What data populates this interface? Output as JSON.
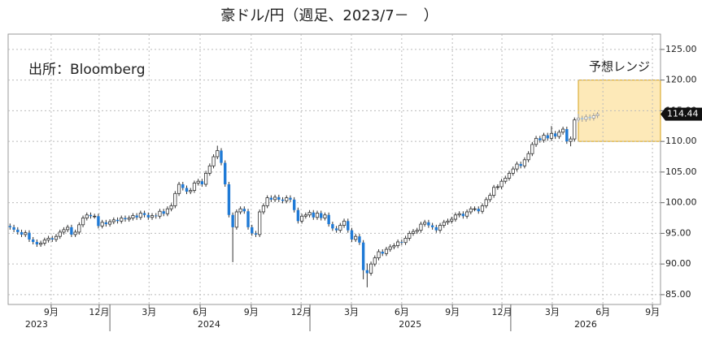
{
  "chart_data": {
    "type": "candlestick",
    "title": "豪ドル/円（週足、2023/7－　）",
    "source": "出所：Bloomberg",
    "up_color": "#ffffff",
    "down_color": "#1f7ad6",
    "edge_color": "#333333",
    "grid": true,
    "ylim": [
      83.4,
      127.5
    ],
    "yticks": [
      {
        "value": 85,
        "label": "85.00"
      },
      {
        "value": 90,
        "label": "90.00"
      },
      {
        "value": 95,
        "label": "95.00"
      },
      {
        "value": 100,
        "label": "100.00"
      },
      {
        "value": 105,
        "label": "105.00"
      },
      {
        "value": 110,
        "label": "110.00"
      },
      {
        "value": 115,
        "label": "115.00"
      },
      {
        "value": 120,
        "label": "120.00"
      },
      {
        "value": 125,
        "label": "125.00"
      }
    ],
    "xlim": [
      -0.5,
      169.4
    ],
    "xticks": [
      {
        "value": 10.7,
        "label": "9月"
      },
      {
        "value": 23.2,
        "label": "12月"
      },
      {
        "value": 36.2,
        "label": "3月"
      },
      {
        "value": 49.5,
        "label": "6月"
      },
      {
        "value": 62.8,
        "label": "9月"
      },
      {
        "value": 75.8,
        "label": "12月"
      },
      {
        "value": 88.9,
        "label": "3月"
      },
      {
        "value": 102.0,
        "label": "6月"
      },
      {
        "value": 115.2,
        "label": "9月"
      },
      {
        "value": 128.1,
        "label": "12月"
      },
      {
        "value": 141.2,
        "label": "3月"
      },
      {
        "value": 154.4,
        "label": "6月"
      },
      {
        "value": 167.3,
        "label": "9月"
      }
    ],
    "years": [
      {
        "value": 6.9,
        "label": "2023"
      },
      {
        "value": 51.8,
        "label": "2024"
      },
      {
        "value": 104.2,
        "label": "2025"
      },
      {
        "value": 149.9,
        "label": "2026"
      }
    ],
    "year_ticks": [
      26.0,
      78.1,
      130.4
    ],
    "range_box": {
      "label": "予想レンジ",
      "xlim": [
        148,
        169.4
      ],
      "ylim": [
        110,
        120
      ],
      "color": "#fde9b8",
      "edge": "#d4a017"
    },
    "candles": [
      [
        96.2,
        96.6,
        95.6,
        96.0
      ],
      [
        96.0,
        96.4,
        95.2,
        95.6
      ],
      [
        95.6,
        96.0,
        94.8,
        95.2
      ],
      [
        95.2,
        95.6,
        94.4,
        94.8
      ],
      [
        94.8,
        95.5,
        94.4,
        95.1
      ],
      [
        95.1,
        95.5,
        93.6,
        94.0
      ],
      [
        94.0,
        94.4,
        93.2,
        93.6
      ],
      [
        93.6,
        94.0,
        92.8,
        93.2
      ],
      [
        93.2,
        93.8,
        92.8,
        93.4
      ],
      [
        93.4,
        94.3,
        93.0,
        93.9
      ],
      [
        93.9,
        94.6,
        93.5,
        94.2
      ],
      [
        94.2,
        94.6,
        93.6,
        94.0
      ],
      [
        94.0,
        94.9,
        93.6,
        94.5
      ],
      [
        94.5,
        95.6,
        94.1,
        95.2
      ],
      [
        95.2,
        96.0,
        94.8,
        95.6
      ],
      [
        95.6,
        96.4,
        95.2,
        96.0
      ],
      [
        96.0,
        96.4,
        94.4,
        94.8
      ],
      [
        94.8,
        95.6,
        94.4,
        95.2
      ],
      [
        95.2,
        96.8,
        94.8,
        96.4
      ],
      [
        96.4,
        97.9,
        96.0,
        97.5
      ],
      [
        97.5,
        98.4,
        97.1,
        98.0
      ],
      [
        98.0,
        98.4,
        97.4,
        97.8
      ],
      [
        97.8,
        98.2,
        97.4,
        97.8
      ],
      [
        97.8,
        98.2,
        95.8,
        96.2
      ],
      [
        96.2,
        97.2,
        95.8,
        96.8
      ],
      [
        96.8,
        97.2,
        96.1,
        96.5
      ],
      [
        96.5,
        97.3,
        96.1,
        96.9
      ],
      [
        96.9,
        97.6,
        96.5,
        97.2
      ],
      [
        97.2,
        97.6,
        96.6,
        97.0
      ],
      [
        97.0,
        97.9,
        96.6,
        97.5
      ],
      [
        97.5,
        97.9,
        96.9,
        97.3
      ],
      [
        97.3,
        97.9,
        96.9,
        97.5
      ],
      [
        97.5,
        98.3,
        97.1,
        97.9
      ],
      [
        97.9,
        98.3,
        97.2,
        97.6
      ],
      [
        97.6,
        98.7,
        97.2,
        98.3
      ],
      [
        98.3,
        98.7,
        97.6,
        98.0
      ],
      [
        98.0,
        98.4,
        97.2,
        97.6
      ],
      [
        97.6,
        98.3,
        97.2,
        97.9
      ],
      [
        97.9,
        98.3,
        97.4,
        97.8
      ],
      [
        97.8,
        99.0,
        97.4,
        98.6
      ],
      [
        98.6,
        99.0,
        97.8,
        98.2
      ],
      [
        98.2,
        99.4,
        97.8,
        99.0
      ],
      [
        99.0,
        99.9,
        98.6,
        99.5
      ],
      [
        99.5,
        101.9,
        99.1,
        101.5
      ],
      [
        101.5,
        103.4,
        101.1,
        103.0
      ],
      [
        103.0,
        103.4,
        102.0,
        102.4
      ],
      [
        102.4,
        102.8,
        101.4,
        101.8
      ],
      [
        101.8,
        102.4,
        101.4,
        102.0
      ],
      [
        102.0,
        103.6,
        101.6,
        103.2
      ],
      [
        103.2,
        103.9,
        102.8,
        103.5
      ],
      [
        103.5,
        103.9,
        102.6,
        103.0
      ],
      [
        103.0,
        105.2,
        102.6,
        104.8
      ],
      [
        104.8,
        106.4,
        104.4,
        106.0
      ],
      [
        106.0,
        107.9,
        105.6,
        107.5
      ],
      [
        107.5,
        109.3,
        107.1,
        108.5
      ],
      [
        108.5,
        108.9,
        106.1,
        106.5
      ],
      [
        106.5,
        106.9,
        102.6,
        103.0
      ],
      [
        103.0,
        103.4,
        97.6,
        98.0
      ],
      [
        98.0,
        98.4,
        90.3,
        96.0
      ],
      [
        96.0,
        98.9,
        95.6,
        98.5
      ],
      [
        98.5,
        99.4,
        98.1,
        99.0
      ],
      [
        99.0,
        99.4,
        98.2,
        98.6
      ],
      [
        98.6,
        99.0,
        95.6,
        96.0
      ],
      [
        96.0,
        96.4,
        94.6,
        95.0
      ],
      [
        95.0,
        95.4,
        94.4,
        94.8
      ],
      [
        94.8,
        98.9,
        94.4,
        98.5
      ],
      [
        98.5,
        99.9,
        98.1,
        99.5
      ],
      [
        99.5,
        101.2,
        99.1,
        100.8
      ],
      [
        100.8,
        101.2,
        100.1,
        100.5
      ],
      [
        100.5,
        101.3,
        100.1,
        100.9
      ],
      [
        100.9,
        101.3,
        100.1,
        100.5
      ],
      [
        100.5,
        100.9,
        99.9,
        100.3
      ],
      [
        100.3,
        101.2,
        99.9,
        100.8
      ],
      [
        100.8,
        101.2,
        100.1,
        100.5
      ],
      [
        100.5,
        100.9,
        98.4,
        98.8
      ],
      [
        98.8,
        99.2,
        96.6,
        97.0
      ],
      [
        97.0,
        98.2,
        96.6,
        97.8
      ],
      [
        97.8,
        98.4,
        97.4,
        98.0
      ],
      [
        98.0,
        98.8,
        97.6,
        98.4
      ],
      [
        98.4,
        98.8,
        97.2,
        97.6
      ],
      [
        97.6,
        98.7,
        97.2,
        98.3
      ],
      [
        98.3,
        98.7,
        97.1,
        97.5
      ],
      [
        97.5,
        98.4,
        97.1,
        98.0
      ],
      [
        98.0,
        98.4,
        96.1,
        96.5
      ],
      [
        96.5,
        96.9,
        95.4,
        95.8
      ],
      [
        95.8,
        96.2,
        95.1,
        95.5
      ],
      [
        95.5,
        96.7,
        95.1,
        96.3
      ],
      [
        96.3,
        97.4,
        95.9,
        97.0
      ],
      [
        97.0,
        97.4,
        95.1,
        95.5
      ],
      [
        95.5,
        95.9,
        93.6,
        94.0
      ],
      [
        94.0,
        94.9,
        93.6,
        94.5
      ],
      [
        94.5,
        94.9,
        93.1,
        93.5
      ],
      [
        93.5,
        93.9,
        87.5,
        89.0
      ],
      [
        89.0,
        90.1,
        86.2,
        88.5
      ],
      [
        88.5,
        90.4,
        88.1,
        90.0
      ],
      [
        90.0,
        91.4,
        89.6,
        91.0
      ],
      [
        91.0,
        92.4,
        90.6,
        92.0
      ],
      [
        92.0,
        92.4,
        91.3,
        91.7
      ],
      [
        91.7,
        92.8,
        91.3,
        92.4
      ],
      [
        92.4,
        93.2,
        92.0,
        92.8
      ],
      [
        92.8,
        93.4,
        92.4,
        93.0
      ],
      [
        93.0,
        94.0,
        92.6,
        93.6
      ],
      [
        93.6,
        94.0,
        93.1,
        93.5
      ],
      [
        93.5,
        94.6,
        93.1,
        94.2
      ],
      [
        94.2,
        95.4,
        93.8,
        95.0
      ],
      [
        95.0,
        95.7,
        94.6,
        95.3
      ],
      [
        95.3,
        95.9,
        94.9,
        95.5
      ],
      [
        95.5,
        96.9,
        95.1,
        96.5
      ],
      [
        96.5,
        97.2,
        96.1,
        96.8
      ],
      [
        96.8,
        97.2,
        95.9,
        96.3
      ],
      [
        96.3,
        96.7,
        95.6,
        96.0
      ],
      [
        96.0,
        96.4,
        95.1,
        95.5
      ],
      [
        95.5,
        96.7,
        95.1,
        96.3
      ],
      [
        96.3,
        97.2,
        95.9,
        96.8
      ],
      [
        96.8,
        97.4,
        96.4,
        97.0
      ],
      [
        97.0,
        97.7,
        96.6,
        97.3
      ],
      [
        97.3,
        98.4,
        96.9,
        98.0
      ],
      [
        98.0,
        98.6,
        97.6,
        98.2
      ],
      [
        98.2,
        98.6,
        97.4,
        97.8
      ],
      [
        97.8,
        98.9,
        97.4,
        98.5
      ],
      [
        98.5,
        99.4,
        98.1,
        99.0
      ],
      [
        99.0,
        99.4,
        98.6,
        99.0
      ],
      [
        99.0,
        99.4,
        98.2,
        98.6
      ],
      [
        98.6,
        99.9,
        98.2,
        99.5
      ],
      [
        99.5,
        100.9,
        99.1,
        100.5
      ],
      [
        100.5,
        101.6,
        100.1,
        101.2
      ],
      [
        101.2,
        102.9,
        100.8,
        102.5
      ],
      [
        102.5,
        103.0,
        102.1,
        102.6
      ],
      [
        102.6,
        103.9,
        102.2,
        103.5
      ],
      [
        103.5,
        104.4,
        103.1,
        104.0
      ],
      [
        104.0,
        105.2,
        103.6,
        104.8
      ],
      [
        104.8,
        105.9,
        104.4,
        105.5
      ],
      [
        105.5,
        106.7,
        105.1,
        106.3
      ],
      [
        106.3,
        106.7,
        105.6,
        106.0
      ],
      [
        106.0,
        107.4,
        105.6,
        107.0
      ],
      [
        107.0,
        108.4,
        106.6,
        108.0
      ],
      [
        108.0,
        109.9,
        107.6,
        109.5
      ],
      [
        109.5,
        110.9,
        109.1,
        110.5
      ],
      [
        110.5,
        110.9,
        109.8,
        110.2
      ],
      [
        110.2,
        111.4,
        109.8,
        111.0
      ],
      [
        111.0,
        111.4,
        110.1,
        110.5
      ],
      [
        110.5,
        112.5,
        110.1,
        111.3
      ],
      [
        111.3,
        111.7,
        110.4,
        110.8
      ],
      [
        110.8,
        111.9,
        110.4,
        111.5
      ],
      [
        111.5,
        112.4,
        111.1,
        112.0
      ],
      [
        112.0,
        112.4,
        109.6,
        110.0
      ],
      [
        110.0,
        110.8,
        109.2,
        110.4
      ],
      [
        110.4,
        113.9,
        110.0,
        113.5
      ],
      [
        113.5,
        114.5,
        113.1,
        113.8
      ],
      [
        113.8,
        114.2,
        113.2,
        113.6
      ],
      [
        113.6,
        114.4,
        113.2,
        114.0
      ],
      [
        114.0,
        114.4,
        113.4,
        113.8
      ],
      [
        113.8,
        114.6,
        113.4,
        114.2
      ],
      [
        114.2,
        114.8,
        113.8,
        114.44
      ]
    ]
  }
}
